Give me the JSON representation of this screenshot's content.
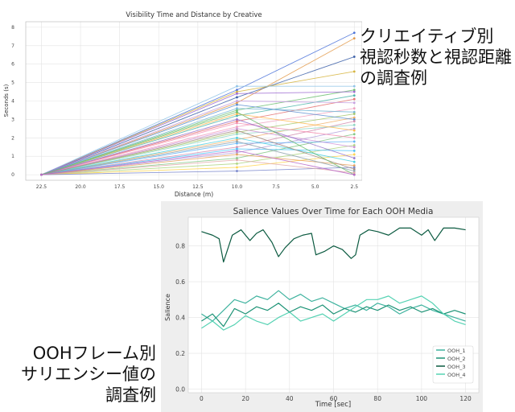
{
  "captions": {
    "top": [
      "クリエイティブ別",
      "視認秒数と視認距離",
      "の調査例"
    ],
    "bottom": [
      "OOHフレーム別",
      "サリエンシー値の",
      "調査例"
    ]
  },
  "colors": {
    "plot_bg": "#ffffff",
    "outer_bg": "#eeeeee",
    "grid": "#e3e3e3",
    "ooh_1": "#3fb39f",
    "ooh_2": "#1d9376",
    "ooh_3": "#0b5a40",
    "ooh_4": "#55d2b3"
  },
  "chart_data": [
    {
      "type": "line",
      "title": "Visibility Time and Distance by Creative",
      "xlabel": "Distance (m)",
      "ylabel": "Seconds (s)",
      "xlim": [
        23.5,
        2.0
      ],
      "ylim": [
        -0.3,
        8.3
      ],
      "x_reversed": true,
      "xticks": [
        22.5,
        20.0,
        17.5,
        15.0,
        12.5,
        10.0,
        7.5,
        5.0,
        2.5
      ],
      "yticks": [
        0,
        1,
        2,
        3,
        4,
        5,
        6,
        7,
        8
      ],
      "grid": true,
      "x": [
        22.5,
        10.0,
        2.5
      ],
      "series": [
        {
          "values": [
            0.0,
            4.6,
            7.7
          ],
          "color": "#4a72d9"
        },
        {
          "values": [
            0.0,
            3.9,
            7.4
          ],
          "color": "#e39a4a"
        },
        {
          "values": [
            0.0,
            4.2,
            6.4
          ],
          "color": "#3b5fa8"
        },
        {
          "values": [
            0.0,
            4.5,
            5.6
          ],
          "color": "#d6b43c"
        },
        {
          "values": [
            0.0,
            4.8,
            4.8
          ],
          "color": "#8fc4e8"
        },
        {
          "values": [
            0.0,
            3.5,
            4.6
          ],
          "color": "#6fbf73"
        },
        {
          "values": [
            0.0,
            4.4,
            4.5
          ],
          "color": "#9c6ad1"
        },
        {
          "values": [
            0.0,
            3.2,
            4.3
          ],
          "color": "#4db6ac"
        },
        {
          "values": [
            0.0,
            2.9,
            4.1
          ],
          "color": "#e57373"
        },
        {
          "values": [
            0.0,
            4.0,
            3.9
          ],
          "color": "#c6a0e0"
        },
        {
          "values": [
            0.0,
            2.6,
            3.6
          ],
          "color": "#f0a0c0"
        },
        {
          "values": [
            0.0,
            3.6,
            3.4
          ],
          "color": "#79b8d6"
        },
        {
          "values": [
            0.0,
            2.3,
            3.3
          ],
          "color": "#a3c76b"
        },
        {
          "values": [
            0.0,
            1.9,
            3.1
          ],
          "color": "#f2b36b"
        },
        {
          "values": [
            0.0,
            3.8,
            3.0
          ],
          "color": "#5c8fd1"
        },
        {
          "values": [
            0.0,
            1.5,
            2.9
          ],
          "color": "#d48fb0"
        },
        {
          "values": [
            0.0,
            2.2,
            2.7
          ],
          "color": "#8ed6c4"
        },
        {
          "values": [
            0.0,
            1.2,
            2.5
          ],
          "color": "#b39ddb"
        },
        {
          "values": [
            0.0,
            3.3,
            2.4
          ],
          "color": "#ffb74d"
        },
        {
          "values": [
            0.0,
            0.9,
            2.2
          ],
          "color": "#81c784"
        },
        {
          "values": [
            0.0,
            2.8,
            2.0
          ],
          "color": "#f48fb1"
        },
        {
          "values": [
            0.0,
            1.7,
            1.8
          ],
          "color": "#64b5f6"
        },
        {
          "values": [
            0.0,
            0.6,
            1.6
          ],
          "color": "#aed581"
        },
        {
          "values": [
            0.0,
            2.5,
            1.5
          ],
          "color": "#ce93d8"
        },
        {
          "values": [
            0.0,
            1.4,
            1.3
          ],
          "color": "#4fc3f7"
        },
        {
          "values": [
            0.0,
            0.4,
            1.1
          ],
          "color": "#ffd54f"
        },
        {
          "values": [
            0.0,
            3.0,
            0.9
          ],
          "color": "#9575cd"
        },
        {
          "values": [
            0.0,
            2.0,
            0.7
          ],
          "color": "#4dd0e1"
        },
        {
          "values": [
            0.0,
            1.1,
            0.5
          ],
          "color": "#e6a15c"
        },
        {
          "values": [
            0.0,
            0.2,
            0.4
          ],
          "color": "#7986cb"
        },
        {
          "values": [
            0.0,
            2.4,
            0.3
          ],
          "color": "#a1887f"
        },
        {
          "values": [
            0.0,
            1.8,
            0.2
          ],
          "color": "#90a4ae"
        },
        {
          "values": [
            0.0,
            0.8,
            0.1
          ],
          "color": "#e0a9a9"
        },
        {
          "values": [
            0.0,
            3.4,
            0.0
          ],
          "color": "#66bb6a"
        },
        {
          "values": [
            0.0,
            1.3,
            0.0
          ],
          "color": "#ba68c8"
        }
      ]
    },
    {
      "type": "line",
      "title": "Salience Values Over Time for Each OOH Media",
      "xlabel": "Time [sec]",
      "ylabel": "Salience",
      "xlim": [
        -6,
        126
      ],
      "ylim": [
        -0.02,
        0.96
      ],
      "xticks": [
        0,
        20,
        40,
        60,
        80,
        100,
        120
      ],
      "yticks": [
        0.0,
        0.2,
        0.4,
        0.6,
        0.8
      ],
      "grid": true,
      "legend": "bottom-right",
      "series": [
        {
          "name": "OOH_1",
          "color": "#3fb39f",
          "values": [
            [
              0,
              0.42
            ],
            [
              5,
              0.38
            ],
            [
              10,
              0.44
            ],
            [
              15,
              0.5
            ],
            [
              20,
              0.48
            ],
            [
              25,
              0.52
            ],
            [
              30,
              0.5
            ],
            [
              35,
              0.55
            ],
            [
              40,
              0.5
            ],
            [
              45,
              0.53
            ],
            [
              50,
              0.49
            ],
            [
              55,
              0.51
            ],
            [
              60,
              0.48
            ],
            [
              65,
              0.45
            ],
            [
              70,
              0.47
            ],
            [
              75,
              0.44
            ],
            [
              80,
              0.48
            ],
            [
              85,
              0.46
            ],
            [
              90,
              0.42
            ],
            [
              95,
              0.45
            ],
            [
              100,
              0.47
            ],
            [
              105,
              0.44
            ],
            [
              110,
              0.42
            ],
            [
              115,
              0.4
            ],
            [
              120,
              0.38
            ]
          ]
        },
        {
          "name": "OOH_2",
          "color": "#1d9376",
          "values": [
            [
              0,
              0.38
            ],
            [
              5,
              0.42
            ],
            [
              10,
              0.35
            ],
            [
              15,
              0.45
            ],
            [
              20,
              0.42
            ],
            [
              25,
              0.46
            ],
            [
              30,
              0.44
            ],
            [
              35,
              0.48
            ],
            [
              40,
              0.43
            ],
            [
              45,
              0.46
            ],
            [
              50,
              0.44
            ],
            [
              55,
              0.47
            ],
            [
              60,
              0.42
            ],
            [
              65,
              0.45
            ],
            [
              70,
              0.43
            ],
            [
              75,
              0.46
            ],
            [
              80,
              0.44
            ],
            [
              85,
              0.47
            ],
            [
              90,
              0.44
            ],
            [
              95,
              0.46
            ],
            [
              100,
              0.43
            ],
            [
              105,
              0.45
            ],
            [
              110,
              0.42
            ],
            [
              115,
              0.44
            ],
            [
              120,
              0.42
            ]
          ]
        },
        {
          "name": "OOH_3",
          "color": "#0b5a40",
          "values": [
            [
              0,
              0.88
            ],
            [
              5,
              0.86
            ],
            [
              8,
              0.84
            ],
            [
              10,
              0.71
            ],
            [
              14,
              0.86
            ],
            [
              18,
              0.89
            ],
            [
              22,
              0.83
            ],
            [
              25,
              0.87
            ],
            [
              28,
              0.89
            ],
            [
              32,
              0.82
            ],
            [
              35,
              0.74
            ],
            [
              38,
              0.79
            ],
            [
              42,
              0.84
            ],
            [
              46,
              0.86
            ],
            [
              50,
              0.87
            ],
            [
              52,
              0.75
            ],
            [
              56,
              0.77
            ],
            [
              60,
              0.8
            ],
            [
              64,
              0.78
            ],
            [
              68,
              0.73
            ],
            [
              70,
              0.75
            ],
            [
              72,
              0.86
            ],
            [
              76,
              0.89
            ],
            [
              80,
              0.88
            ],
            [
              85,
              0.86
            ],
            [
              90,
              0.9
            ],
            [
              95,
              0.9
            ],
            [
              100,
              0.86
            ],
            [
              103,
              0.89
            ],
            [
              106,
              0.83
            ],
            [
              110,
              0.9
            ],
            [
              115,
              0.9
            ],
            [
              120,
              0.89
            ]
          ]
        },
        {
          "name": "OOH_4",
          "color": "#55d2b3",
          "values": [
            [
              0,
              0.34
            ],
            [
              5,
              0.38
            ],
            [
              10,
              0.33
            ],
            [
              15,
              0.36
            ],
            [
              20,
              0.41
            ],
            [
              25,
              0.38
            ],
            [
              30,
              0.36
            ],
            [
              35,
              0.4
            ],
            [
              40,
              0.43
            ],
            [
              45,
              0.38
            ],
            [
              50,
              0.4
            ],
            [
              55,
              0.42
            ],
            [
              60,
              0.38
            ],
            [
              65,
              0.42
            ],
            [
              70,
              0.46
            ],
            [
              75,
              0.5
            ],
            [
              80,
              0.5
            ],
            [
              85,
              0.52
            ],
            [
              90,
              0.48
            ],
            [
              95,
              0.5
            ],
            [
              100,
              0.52
            ],
            [
              105,
              0.48
            ],
            [
              110,
              0.42
            ],
            [
              115,
              0.38
            ],
            [
              120,
              0.36
            ]
          ]
        }
      ]
    }
  ]
}
